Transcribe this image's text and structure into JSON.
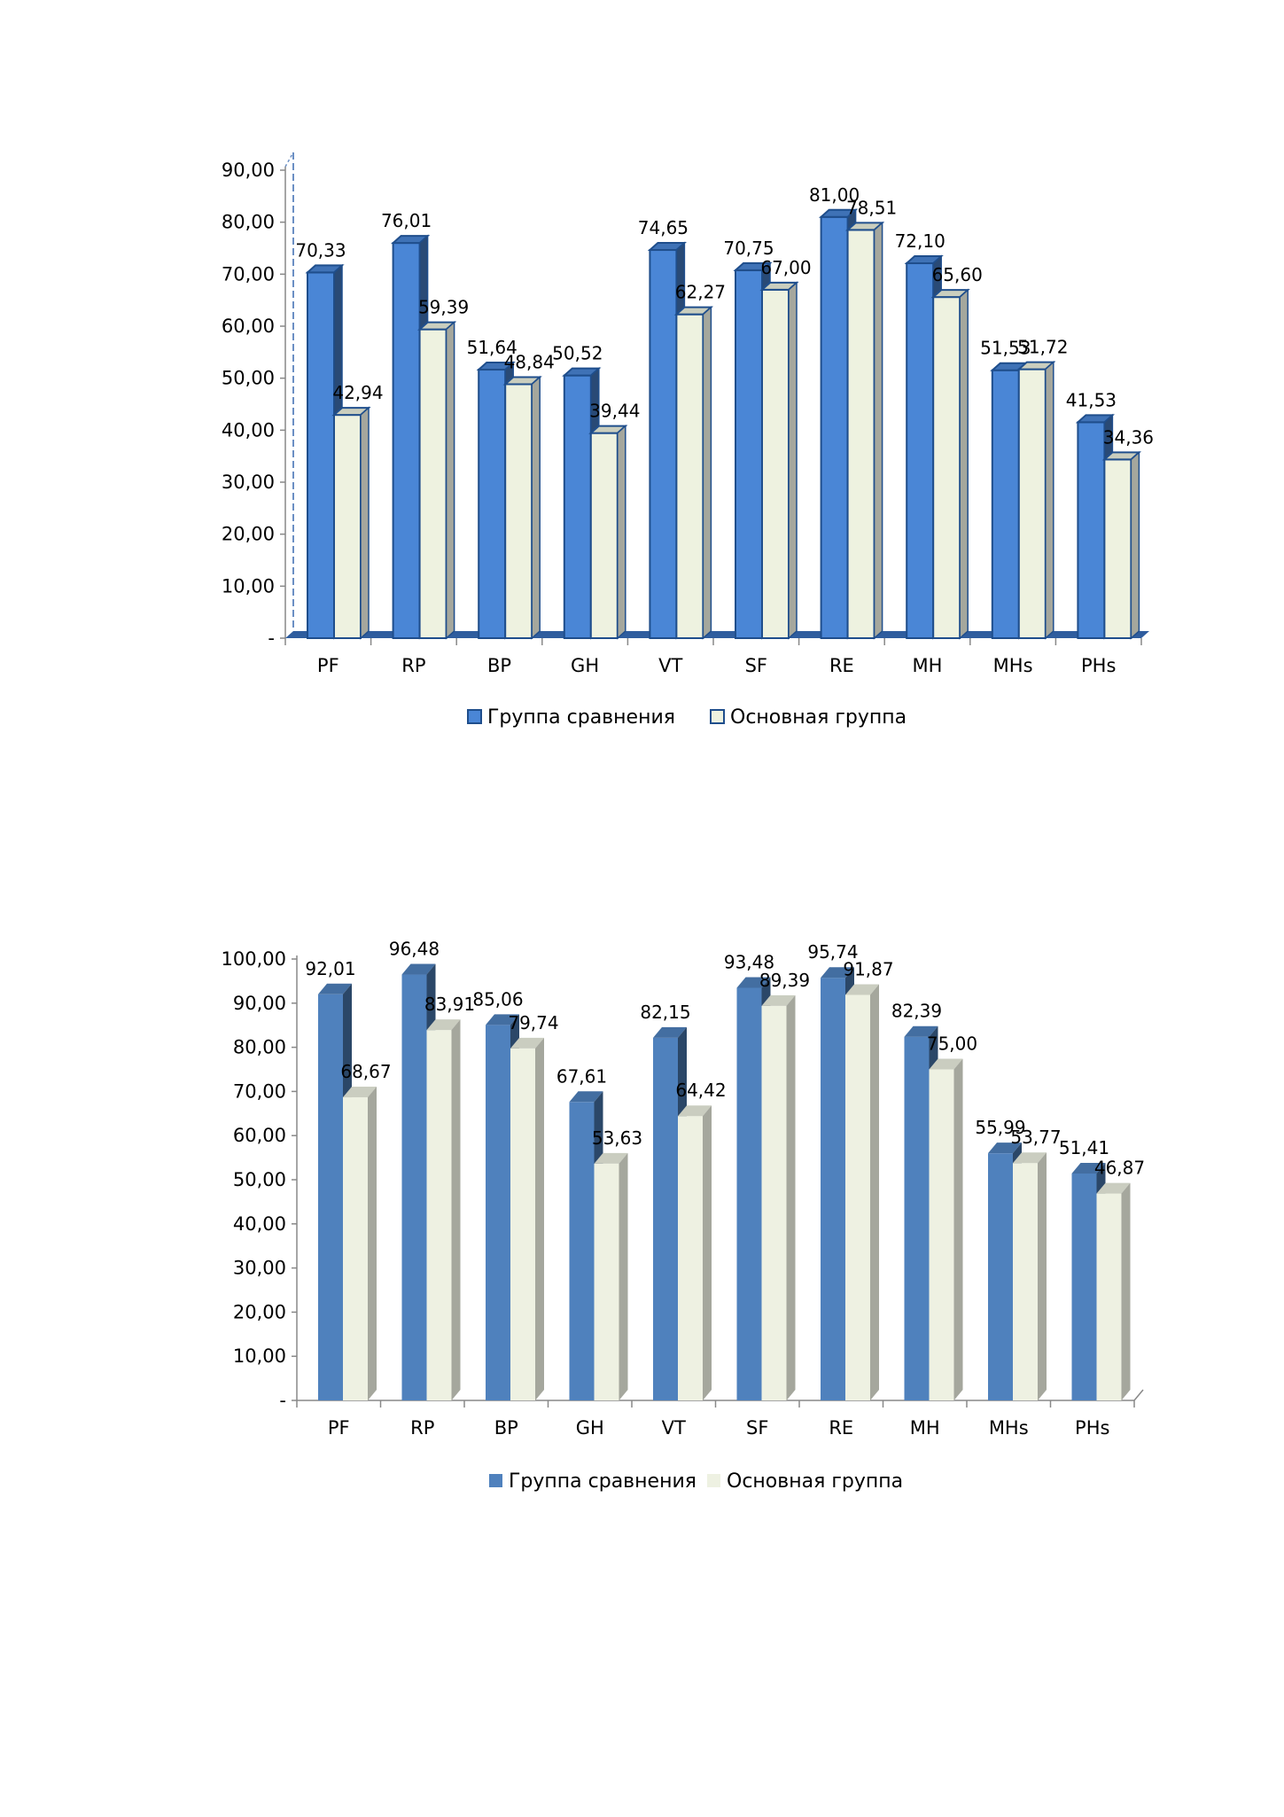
{
  "colors": {
    "series_a_1": "#4a86d6",
    "series_b_1": "#eef2e0",
    "series_a_2": "#4f81bd",
    "series_b_2": "#eef1e2",
    "floor_1": "#2f5d9e"
  },
  "chart_data": [
    {
      "type": "bar",
      "categories": [
        "PF",
        "RP",
        "BP",
        "GH",
        "VT",
        "SF",
        "RE",
        "MH",
        "MHs",
        "PHs"
      ],
      "series": [
        {
          "name": "Группа сравнения",
          "values": [
            70.33,
            76.01,
            51.64,
            50.52,
            74.65,
            70.75,
            81.0,
            72.1,
            51.53,
            41.53
          ],
          "labels": [
            "70,33",
            "76,01",
            "51,64",
            "50,52",
            "74,65",
            "70,75",
            "81,00",
            "72,10",
            "51,53",
            "41,53"
          ]
        },
        {
          "name": "Основная группа",
          "values": [
            42.94,
            59.39,
            48.84,
            39.44,
            62.27,
            67.0,
            78.51,
            65.6,
            51.72,
            34.36
          ],
          "labels": [
            "42,94",
            "59,39",
            "48,84",
            "39,44",
            "62,27",
            "67,00",
            "78,51",
            "65,60",
            "51,72",
            "34,36"
          ]
        }
      ],
      "ylim": [
        0,
        90
      ],
      "yticks": [
        0,
        10,
        20,
        30,
        40,
        50,
        60,
        70,
        80,
        90
      ],
      "ytick_labels": [
        "-",
        "10,00",
        "20,00",
        "30,00",
        "40,00",
        "50,00",
        "60,00",
        "70,00",
        "80,00",
        "90,00"
      ],
      "legend_position": "bottom",
      "style": "3d-clustered"
    },
    {
      "type": "bar",
      "categories": [
        "PF",
        "RP",
        "BP",
        "GH",
        "VT",
        "SF",
        "RE",
        "MH",
        "MHs",
        "PHs"
      ],
      "series": [
        {
          "name": "Группа сравнения",
          "values": [
            92.01,
            96.48,
            85.06,
            67.61,
            82.15,
            93.48,
            95.74,
            82.39,
            55.99,
            51.41
          ],
          "labels": [
            "92,01",
            "96,48",
            "85,06",
            "67,61",
            "82,15",
            "93,48",
            "95,74",
            "82,39",
            "55,99",
            "51,41"
          ]
        },
        {
          "name": "Основная группа",
          "values": [
            68.67,
            83.91,
            79.74,
            53.63,
            64.42,
            89.39,
            91.87,
            75.0,
            53.77,
            46.87
          ],
          "labels": [
            "68,67",
            "83,91",
            "79,74",
            "53,63",
            "64,42",
            "89,39",
            "91,87",
            "75,00",
            "53,77",
            "46,87"
          ]
        }
      ],
      "ylim": [
        0,
        100
      ],
      "yticks": [
        0,
        10,
        20,
        30,
        40,
        50,
        60,
        70,
        80,
        90,
        100
      ],
      "ytick_labels": [
        "-",
        "10,00",
        "20,00",
        "30,00",
        "40,00",
        "50,00",
        "60,00",
        "70,00",
        "80,00",
        "90,00",
        "100,00"
      ],
      "legend_position": "bottom",
      "style": "3d-clustered"
    }
  ]
}
